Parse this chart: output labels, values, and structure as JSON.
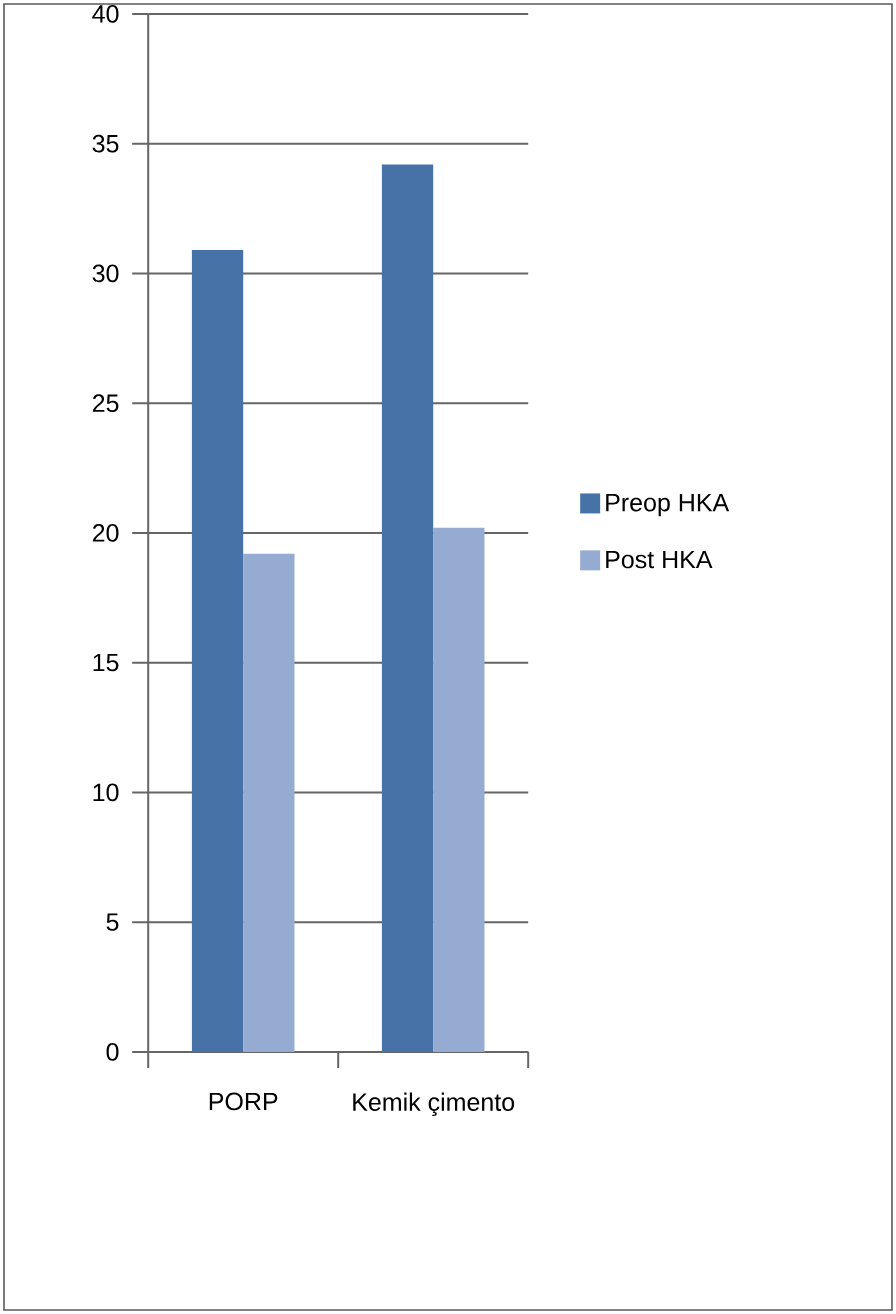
{
  "chart_data": {
    "type": "bar",
    "categories": [
      "PORP",
      "Kemik çimento"
    ],
    "series": [
      {
        "name": "Preop HKA",
        "color": "#4672a8",
        "values": [
          30.9,
          34.2
        ]
      },
      {
        "name": "Post HKA",
        "color": "#95abd2",
        "values": [
          19.2,
          20.2
        ]
      }
    ],
    "ylim": [
      0,
      40
    ],
    "yticks": [
      0,
      5,
      10,
      15,
      20,
      25,
      30,
      35,
      40
    ],
    "grid": "y",
    "legend": "right"
  }
}
